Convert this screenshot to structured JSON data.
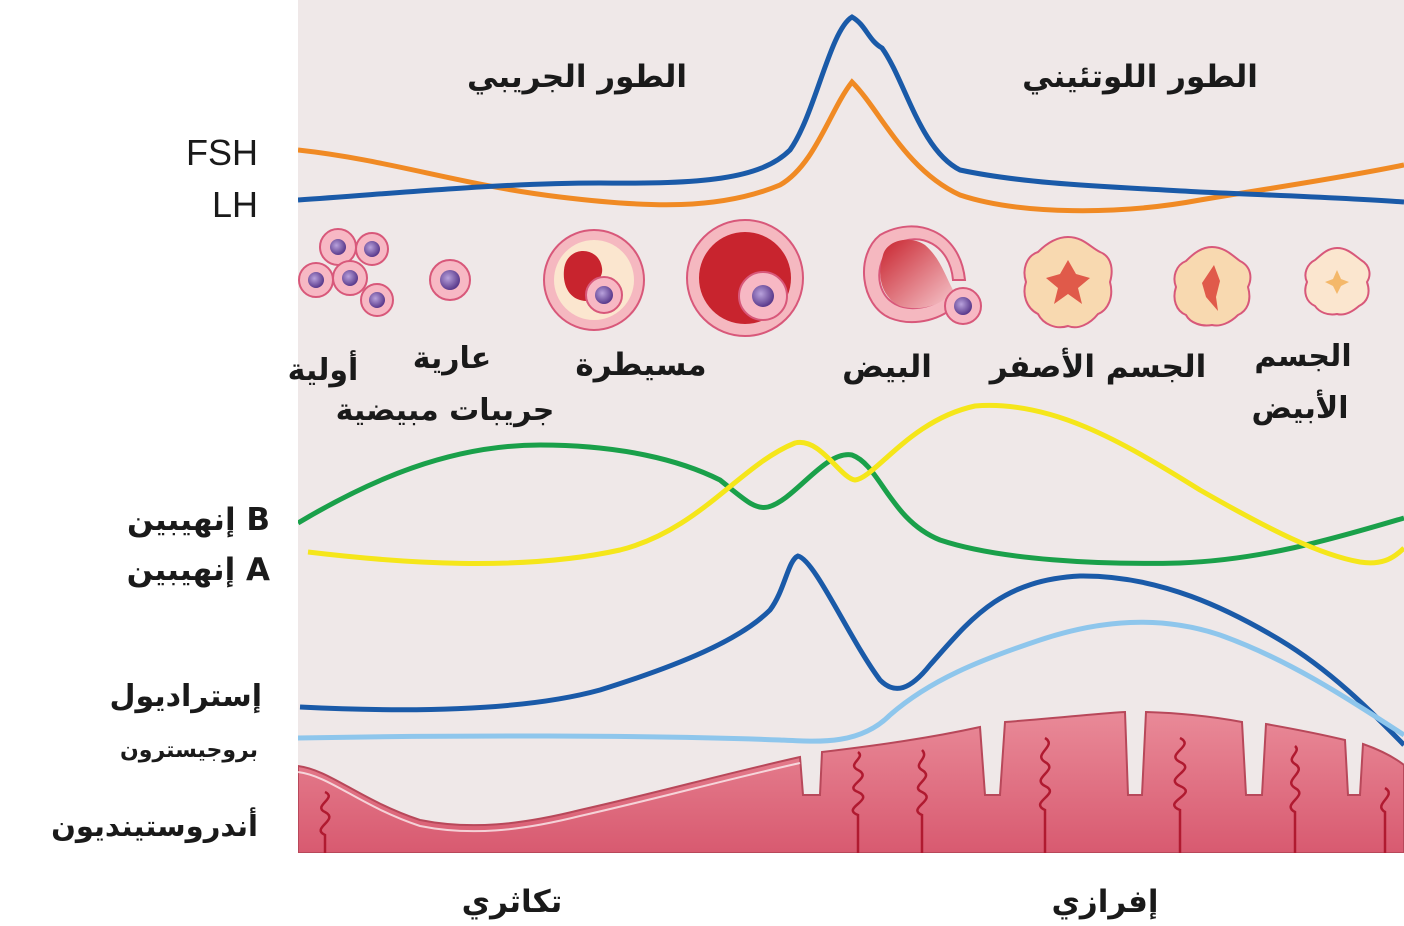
{
  "phase_labels": {
    "follicular": "الطور الجريبي",
    "luteal": "الطور اللوتئيني"
  },
  "hormone_labels": {
    "fsh": "FSH",
    "lh": "LH",
    "inhibin_b": "إنهيبين B",
    "inhibin_a": "إنهيبين A",
    "estradiol": "إستراديول",
    "progesterone": "بروجيسترون",
    "androstenedione": "أندروستينديون"
  },
  "structure_labels": {
    "primordial": "أولية",
    "primary": "عارية",
    "ovarian_follicles": "جريبات مبيضية",
    "dominant": "مسيطرة",
    "ovum": "البيض",
    "corpus_luteum": "الجسم الأصفر",
    "corpus_albicans_line1": "الجسم",
    "corpus_albicans_line2": "الأبيض"
  },
  "endometrium_labels": {
    "proliferative": "تكاثري",
    "secretory": "إفرازي"
  },
  "colors": {
    "panel_background": "#efe8e8",
    "fsh_line": "#f08a24",
    "lh_line": "#1a5aa8",
    "inhibin_b_line": "#1aa04a",
    "inhibin_a_line": "#f5e61a",
    "estradiol_line": "#1a5aa8",
    "progesterone_line": "#8ec6ec",
    "endometrium": "#dc6a7c",
    "follicle_red": "#c8242e",
    "oocyte_purple": "#6a4a9c",
    "corpus_luteum_tan": "#f8d9b0"
  }
}
